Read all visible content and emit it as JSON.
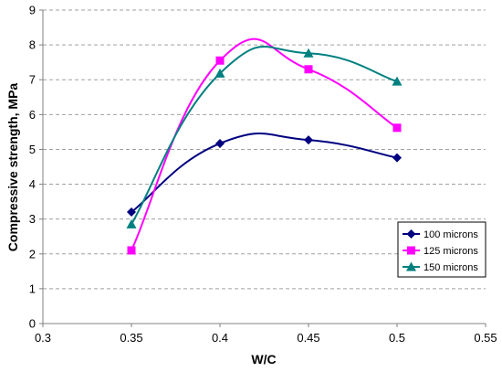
{
  "chart_data": {
    "type": "line",
    "title": "",
    "xlabel": "W/C",
    "ylabel": "Compressive strength, MPa",
    "xlim": [
      0.3,
      0.55
    ],
    "ylim": [
      0,
      9
    ],
    "xticks": [
      0.3,
      0.35,
      0.4,
      0.45,
      0.5,
      0.55
    ],
    "yticks": [
      0,
      1,
      2,
      3,
      4,
      5,
      6,
      7,
      8,
      9
    ],
    "xtick_labels": [
      "0.3",
      "0.35",
      "0.4",
      "0.45",
      "0.5",
      "0.55"
    ],
    "ytick_labels": [
      "0",
      "1",
      "2",
      "3",
      "4",
      "5",
      "6",
      "7",
      "8",
      "9"
    ],
    "grid": "horizontal dashed",
    "legend_position": "right",
    "x": [
      0.35,
      0.4,
      0.45,
      0.5
    ],
    "series": [
      {
        "name": "100 microns",
        "color": "#000080",
        "marker": "diamond",
        "values": [
          3.2,
          5.17,
          5.27,
          4.76
        ]
      },
      {
        "name": "125 microns",
        "color": "#ff00ff",
        "marker": "square",
        "values": [
          2.1,
          7.55,
          7.3,
          5.62
        ]
      },
      {
        "name": "150 microns",
        "color": "#008080",
        "marker": "triangle",
        "values": [
          2.85,
          7.18,
          7.76,
          6.95
        ]
      }
    ]
  }
}
